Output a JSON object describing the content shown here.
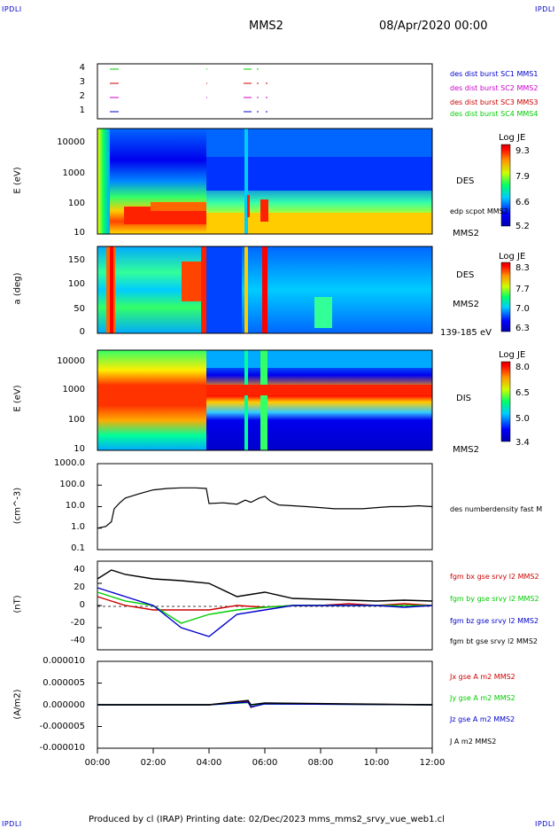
{
  "corners": {
    "tl": "IPDLI",
    "tr": "IPDLI",
    "bl": "IPDLI",
    "br": "IPDLI"
  },
  "header": {
    "title": "MMS2",
    "date": "08/Apr/2020 00:00"
  },
  "footer": {
    "text": "Produced by cl (IRAP)   Printing date: 02/Dec/2023   mms_mms2_srvy_vue_web1.cl"
  },
  "x_ticks": [
    "00:00",
    "02:00",
    "04:00",
    "06:00",
    "08:00",
    "10:00",
    "12:00"
  ],
  "colors": {
    "ind1": "#00cc00",
    "ind2": "#cc00cc",
    "ind3": "#cc0000",
    "ind4": "#0000cc",
    "bx": "#cc0000",
    "by": "#00cc00",
    "bz": "#0000cc",
    "bt": "#000000"
  },
  "panel1": {
    "yticks": [
      "4",
      "3",
      "2",
      "1"
    ],
    "legend": [
      {
        "text": "des dist burst SC1 MMS1",
        "color": "#0000cc"
      },
      {
        "text": "des dist burst SC2 MMS2",
        "color": "#cc00cc"
      },
      {
        "text": "des dist burst SC3 MMS3",
        "color": "#cc0000"
      },
      {
        "text": "des dist burst SC4 MMS4",
        "color": "#00cc00"
      }
    ]
  },
  "panel2": {
    "ylabel": "E (eV)",
    "yticks": [
      "10000",
      "1000",
      "100",
      "10"
    ],
    "right": "DES",
    "right2": "edp scpot MMS2",
    "right3": "MMS2",
    "cb_title": "Log JE",
    "cb_ticks": [
      "9.3",
      "7.9",
      "6.6",
      "5.2"
    ]
  },
  "panel3": {
    "ylabel": "a (deg)",
    "yticks": [
      "150",
      "100",
      "50",
      "0"
    ],
    "right": "DES",
    "right2": "MMS2",
    "right3": "139-185 eV",
    "cb_title": "Log JE",
    "cb_ticks": [
      "8.3",
      "7.7",
      "7.0",
      "6.3"
    ]
  },
  "panel4": {
    "ylabel": "E (eV)",
    "yticks": [
      "10000",
      "1000",
      "100",
      "10"
    ],
    "right": "DIS",
    "right3": "MMS2",
    "cb_title": "Log JE",
    "cb_ticks": [
      "8.0",
      "6.5",
      "5.0",
      "3.4"
    ]
  },
  "chart_data": [
    {
      "type": "line",
      "ylabel": "(cm^-3)",
      "yticks": [
        "1000.0",
        "100.0",
        "10.0",
        "1.0",
        "0.1"
      ],
      "yscale": "log",
      "ylim": [
        0.1,
        1000
      ],
      "xlim_hours": [
        0,
        12
      ],
      "series": [
        {
          "name": "des numberdensity fast M",
          "x": [
            0,
            0.3,
            0.5,
            0.6,
            0.8,
            1.0,
            1.5,
            2.0,
            2.5,
            3.0,
            3.5,
            3.9,
            4.0,
            4.5,
            5.0,
            5.3,
            5.5,
            5.8,
            6.0,
            6.2,
            6.5,
            7.0,
            7.5,
            8.0,
            8.5,
            9.0,
            9.5,
            10.0,
            10.5,
            11.0,
            11.5,
            12.0
          ],
          "values": [
            1,
            1.2,
            2,
            8,
            15,
            25,
            40,
            60,
            70,
            75,
            75,
            70,
            14,
            15,
            13,
            20,
            16,
            25,
            30,
            18,
            12,
            11,
            10,
            9,
            8,
            8,
            8,
            9,
            10,
            10,
            11,
            10
          ]
        }
      ]
    },
    {
      "type": "line",
      "ylabel": "(nT)",
      "yticks": [
        "40",
        "20",
        "0",
        "-20",
        "-40"
      ],
      "ylim": [
        -50,
        50
      ],
      "xlim_hours": [
        0,
        12
      ],
      "series": [
        {
          "name": "fgm bx gse srvy l2 MMS2",
          "x": [
            0,
            0.5,
            1,
            2,
            3,
            4,
            5,
            6,
            7,
            8,
            9,
            10,
            11,
            12
          ],
          "values": [
            10,
            5,
            0,
            -5,
            -5,
            -5,
            0,
            -2,
            0,
            0,
            2,
            0,
            2,
            0
          ]
        },
        {
          "name": "fgm by gse srvy l2 MMS2",
          "x": [
            0,
            0.5,
            1,
            2,
            3,
            4,
            5,
            6,
            7,
            8,
            9,
            10,
            11,
            12
          ],
          "values": [
            15,
            10,
            5,
            0,
            -20,
            -10,
            -5,
            -2,
            0,
            0,
            0,
            0,
            0,
            0
          ]
        },
        {
          "name": "fgm bz gse srvy l2 MMS2",
          "x": [
            0,
            0.5,
            1,
            2,
            3,
            4,
            5,
            6,
            7,
            8,
            9,
            10,
            11,
            12
          ],
          "values": [
            20,
            15,
            10,
            0,
            -25,
            -35,
            -10,
            -5,
            0,
            0,
            0,
            0,
            -2,
            0
          ]
        },
        {
          "name": "fgm bt gse srvy l2 MMS2",
          "x": [
            0,
            0.5,
            1,
            2,
            3,
            4,
            5,
            6,
            7,
            8,
            9,
            10,
            11,
            12
          ],
          "values": [
            30,
            40,
            35,
            30,
            28,
            25,
            10,
            15,
            8,
            7,
            6,
            5,
            6,
            5
          ]
        }
      ]
    },
    {
      "type": "line",
      "ylabel": "(A/m2)",
      "yticks": [
        "0.000010",
        "0.000005",
        "0.000000",
        "-0.000005",
        "-0.000010"
      ],
      "ylim": [
        -1e-05,
        1e-05
      ],
      "xlim_hours": [
        0,
        12
      ],
      "series": [
        {
          "name": "Jx gse A m2 MMS2",
          "x": [
            0,
            4,
            5.4,
            5.5,
            6,
            12
          ],
          "values": [
            0,
            0,
            8e-07,
            -6e-07,
            3e-07,
            0
          ]
        },
        {
          "name": "Jy gse A m2 MMS2",
          "x": [
            0,
            4,
            5.4,
            5.5,
            6,
            12
          ],
          "values": [
            0,
            0,
            5e-07,
            -4e-07,
            2e-07,
            0
          ]
        },
        {
          "name": "Jz gse A m2 MMS2",
          "x": [
            0,
            4,
            5.4,
            5.5,
            6,
            12
          ],
          "values": [
            0,
            0,
            6e-07,
            -5e-07,
            2e-07,
            0
          ]
        },
        {
          "name": "J A m2 MMS2",
          "x": [
            0,
            4,
            5.4,
            5.5,
            6,
            12
          ],
          "values": [
            0,
            0,
            1e-06,
            0,
            4e-07,
            0
          ]
        }
      ]
    }
  ]
}
